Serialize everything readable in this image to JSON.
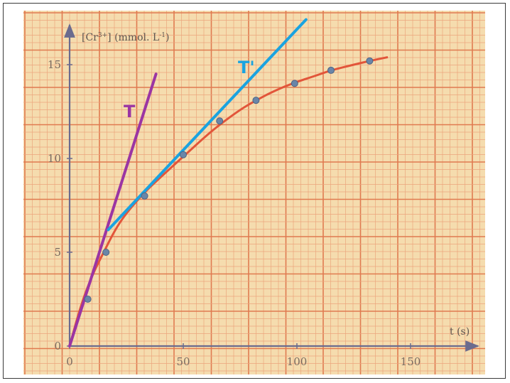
{
  "chart_data": {
    "type": "scatter",
    "title": "",
    "xlabel": "t (s)",
    "ylabel": "[Cr3+] (mmol. L-1)",
    "ylabel_parts": {
      "main": "[Cr",
      "sup": "3+",
      "rest": "] (mmol. L",
      "sup2": "-1",
      "end": ")"
    },
    "xlim": [
      0,
      180
    ],
    "ylim": [
      0,
      17
    ],
    "x_ticks": [
      0,
      50,
      100,
      150
    ],
    "y_ticks": [
      0,
      5,
      10,
      15
    ],
    "grid": true,
    "points": [
      {
        "x": 8,
        "y": 2.5
      },
      {
        "x": 16,
        "y": 5
      },
      {
        "x": 33,
        "y": 8
      },
      {
        "x": 50,
        "y": 10.2
      },
      {
        "x": 66,
        "y": 12
      },
      {
        "x": 82,
        "y": 13.1
      },
      {
        "x": 99,
        "y": 14
      },
      {
        "x": 115,
        "y": 14.7
      },
      {
        "x": 132,
        "y": 15.2
      }
    ],
    "curve": [
      [
        0,
        0
      ],
      [
        5,
        2.2
      ],
      [
        10,
        3.8
      ],
      [
        15,
        5.0
      ],
      [
        20,
        6.2
      ],
      [
        25,
        7.1
      ],
      [
        33,
        8.2
      ],
      [
        40,
        9.0
      ],
      [
        50,
        10.1
      ],
      [
        60,
        11.2
      ],
      [
        66,
        11.8
      ],
      [
        75,
        12.6
      ],
      [
        82,
        13.1
      ],
      [
        90,
        13.6
      ],
      [
        99,
        14.05
      ],
      [
        108,
        14.4
      ],
      [
        115,
        14.7
      ],
      [
        125,
        15.0
      ],
      [
        132,
        15.2
      ],
      [
        140,
        15.4
      ]
    ],
    "tangents": [
      {
        "label": "T",
        "color": "#9b35a3",
        "x1": 0,
        "y1": 0,
        "x2": 38,
        "y2": 14.5
      },
      {
        "label": "T'",
        "color": "#1aa3e0",
        "x1": 17,
        "y1": 6.2,
        "x2": 104,
        "y2": 17.4
      }
    ]
  },
  "colors": {
    "paper": "#f5dcae",
    "grid_minor": "#eba57c",
    "grid_major": "#e07a50",
    "axis": "#6b6b8e",
    "curve": "#e2553a",
    "point": "#6a86a8"
  }
}
